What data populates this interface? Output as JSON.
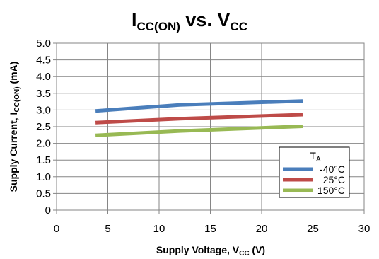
{
  "chart_data": {
    "type": "line",
    "title": {
      "main1": "I",
      "sub1": "CC(ON)",
      "mid": " vs. V",
      "sub2": "CC"
    },
    "xlabel": {
      "main": "Supply Voltage, V",
      "sub": "CC",
      "tail": " (V)"
    },
    "ylabel": {
      "main": "Supply Current, I",
      "sub": "CC(ON)",
      "tail": " (mA)"
    },
    "xlim": [
      0,
      30
    ],
    "ylim": [
      0,
      5.0
    ],
    "x_ticks": [
      "0",
      "5",
      "10",
      "15",
      "20",
      "25",
      "30"
    ],
    "y_ticks": [
      "0",
      "0.5",
      "1.0",
      "1.5",
      "2.0",
      "2.5",
      "3.0",
      "3.5",
      "4.0",
      "4.5",
      "5.0"
    ],
    "grid": true,
    "legend": {
      "title_main": "T",
      "title_sub": "A",
      "placement": "bottom-right"
    },
    "series": [
      {
        "name": "-40°C",
        "color": "#4a7ebb",
        "x": [
          3.8,
          12,
          24
        ],
        "y": [
          2.97,
          3.15,
          3.27
        ]
      },
      {
        "name": "25°C",
        "color": "#be4b48",
        "x": [
          3.8,
          12,
          24
        ],
        "y": [
          2.62,
          2.74,
          2.86
        ]
      },
      {
        "name": "150°C",
        "color": "#98b954",
        "x": [
          3.8,
          12,
          24
        ],
        "y": [
          2.24,
          2.37,
          2.51
        ]
      }
    ]
  }
}
